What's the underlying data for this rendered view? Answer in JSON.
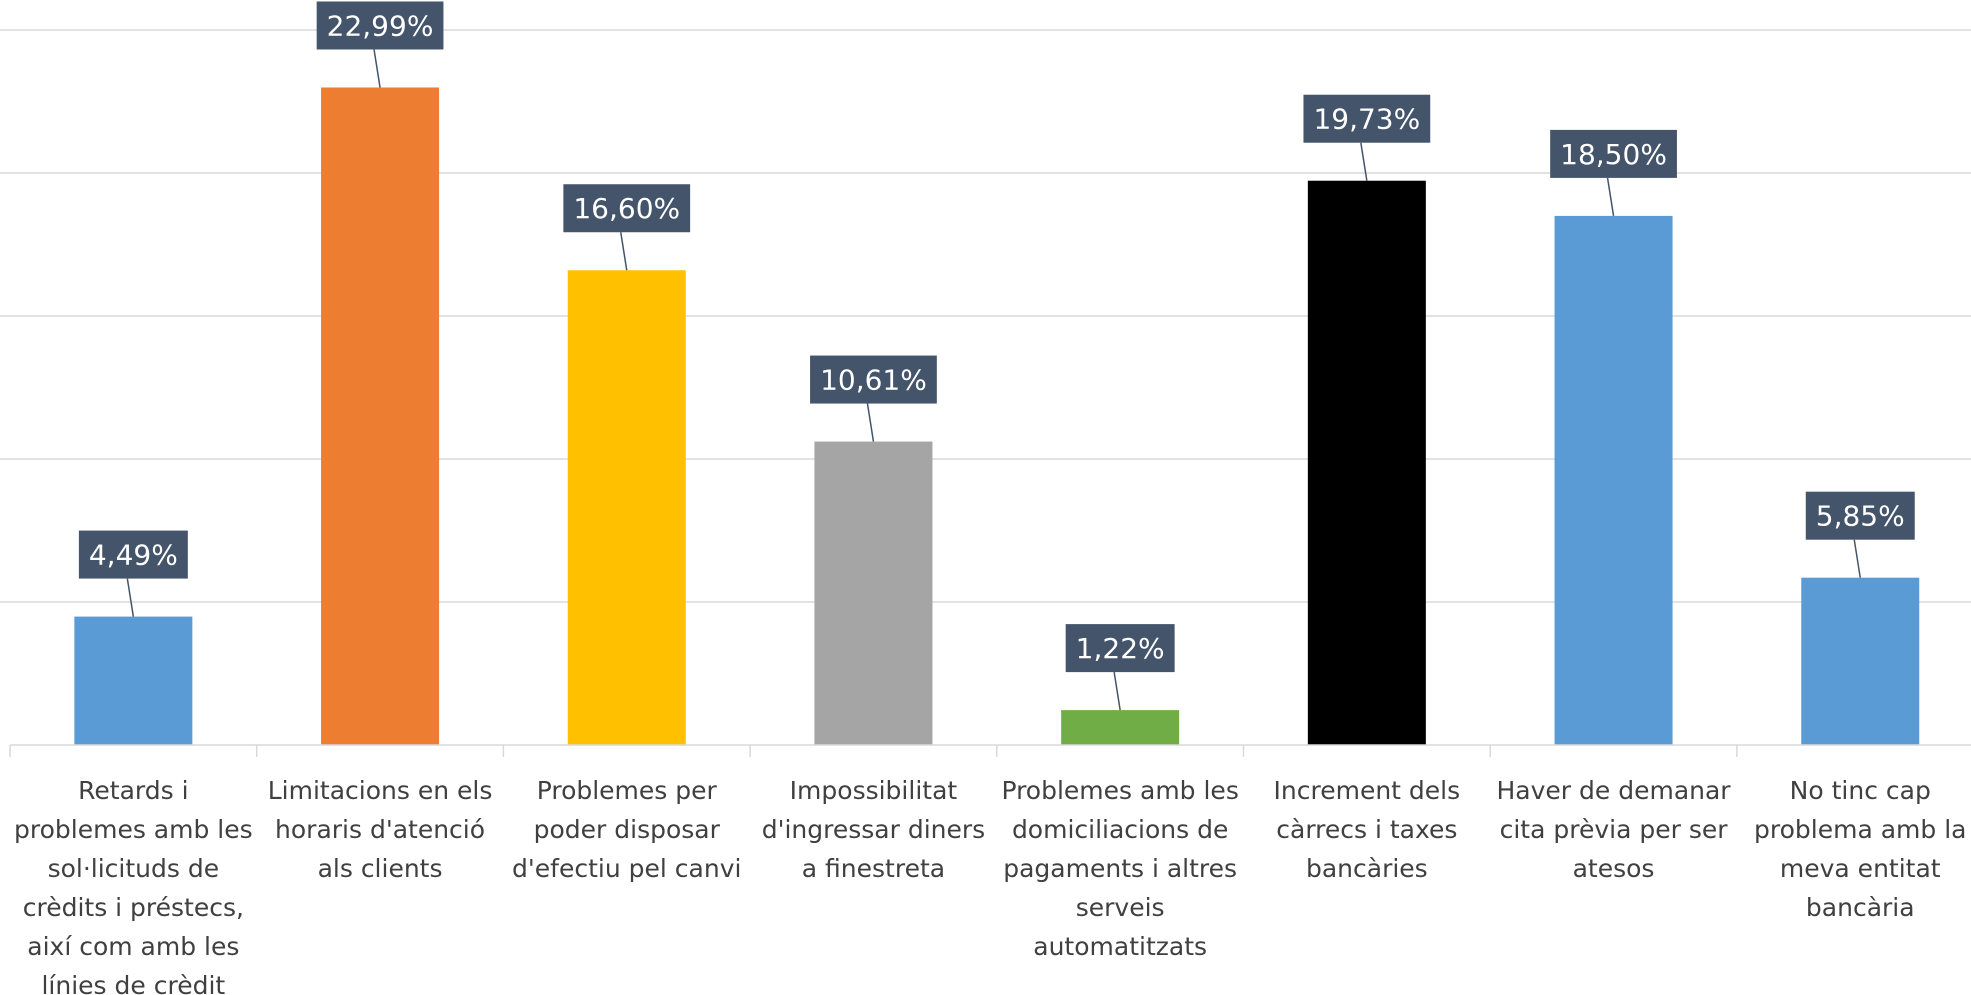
{
  "chart_data": {
    "type": "bar",
    "title": "",
    "xlabel": "",
    "ylabel": "",
    "ylim": [
      0,
      25
    ],
    "gridlines": [
      0,
      5,
      10,
      15,
      20,
      25
    ],
    "grid": true,
    "legend": "none",
    "categories": [
      [
        "Retards i",
        "problemes amb les",
        "sol·licituds de",
        "crèdits i préstecs,",
        "així com amb les",
        "línies de crèdit"
      ],
      [
        "Limitacions en els",
        "horaris d'atenció",
        "als clients"
      ],
      [
        "Problemes per",
        "poder disposar",
        "d'efectiu pel canvi"
      ],
      [
        "Impossibilitat",
        "d'ingressar diners",
        "a finestreta"
      ],
      [
        "Problemes amb les",
        "domiciliacions de",
        "pagaments i altres",
        "serveis",
        "automatitzats"
      ],
      [
        "Increment dels",
        "càrrecs i taxes",
        "bancàries"
      ],
      [
        "Haver de demanar",
        "cita prèvia per ser",
        "atesos"
      ],
      [
        "No tinc cap",
        "problema amb la",
        "meva entitat",
        "bancària"
      ]
    ],
    "values": [
      4.49,
      22.99,
      16.6,
      10.61,
      1.22,
      19.73,
      18.5,
      5.85
    ],
    "value_labels": [
      "4,49%",
      "22,99%",
      "16,60%",
      "10,61%",
      "1,22%",
      "19,73%",
      "18,50%",
      "5,85%"
    ],
    "colors": [
      "#5B9BD5",
      "#ED7D31",
      "#FFC000",
      "#A5A5A5",
      "#70AD47",
      "#000000",
      "#5B9BD5",
      "#5B9BD5"
    ],
    "label_box_color": "#44546A",
    "label_text_color": "#FFFFFF",
    "gridline_color": "#D9D9D9",
    "axis_color": "#D9D9D9",
    "category_text_color": "#404040"
  }
}
